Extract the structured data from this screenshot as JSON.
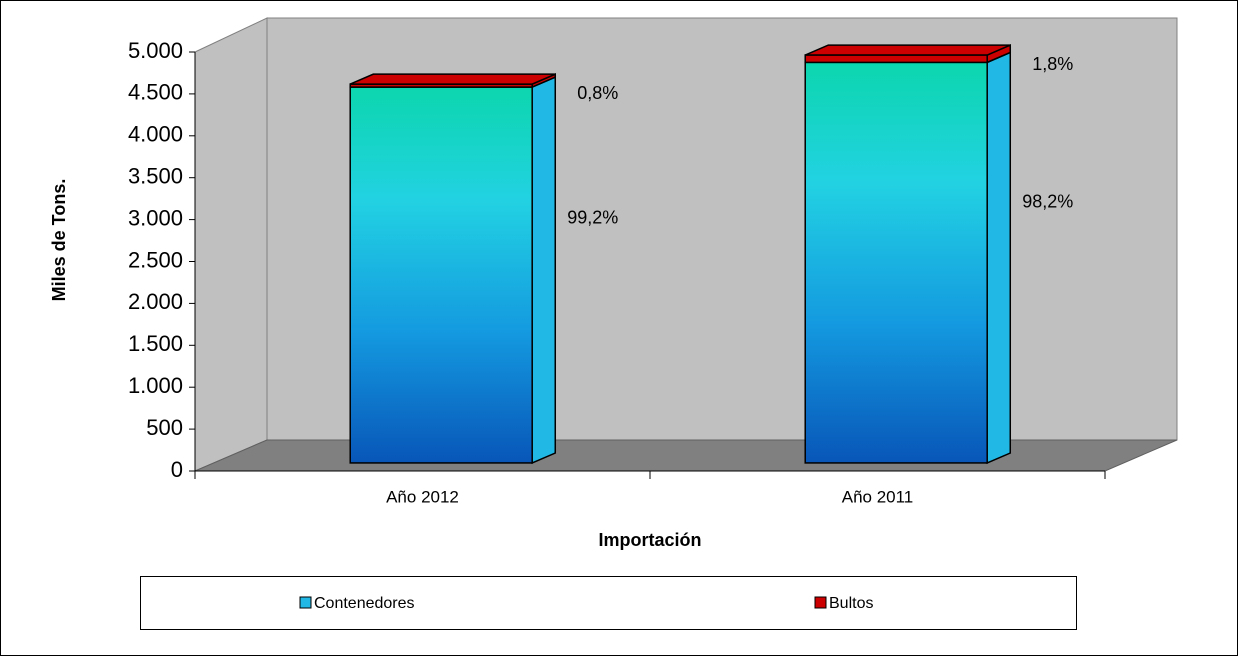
{
  "chart_data": {
    "type": "bar3d_stacked",
    "x_label": "Importación",
    "y_label": "Miles de Tons.",
    "categories": [
      "Año 2012",
      "Año 2011"
    ],
    "series": [
      {
        "name": "Contenedores",
        "color": "#21b8e6",
        "values": [
          4485,
          4780
        ],
        "percent_labels": [
          "99,2%",
          "98,2%"
        ]
      },
      {
        "name": "Bultos",
        "color": "#cc0000",
        "values": [
          36,
          88
        ],
        "percent_labels": [
          "0,8%",
          "1,8%"
        ]
      }
    ],
    "ylim": [
      0,
      5000
    ],
    "yticks": [
      0,
      500,
      {
        "value": 1000,
        "label": "1.000"
      },
      {
        "value": 1500,
        "label": "1.500"
      },
      {
        "value": 2000,
        "label": "2.000"
      },
      {
        "value": 2500,
        "label": "2.500"
      },
      {
        "value": 3000,
        "label": "3.000"
      },
      {
        "value": 3500,
        "label": "3.500"
      },
      {
        "value": 4000,
        "label": "4.000"
      },
      {
        "value": 4500,
        "label": "4.500"
      },
      {
        "value": 5000,
        "label": "5.000"
      }
    ],
    "legend": "bottom"
  }
}
